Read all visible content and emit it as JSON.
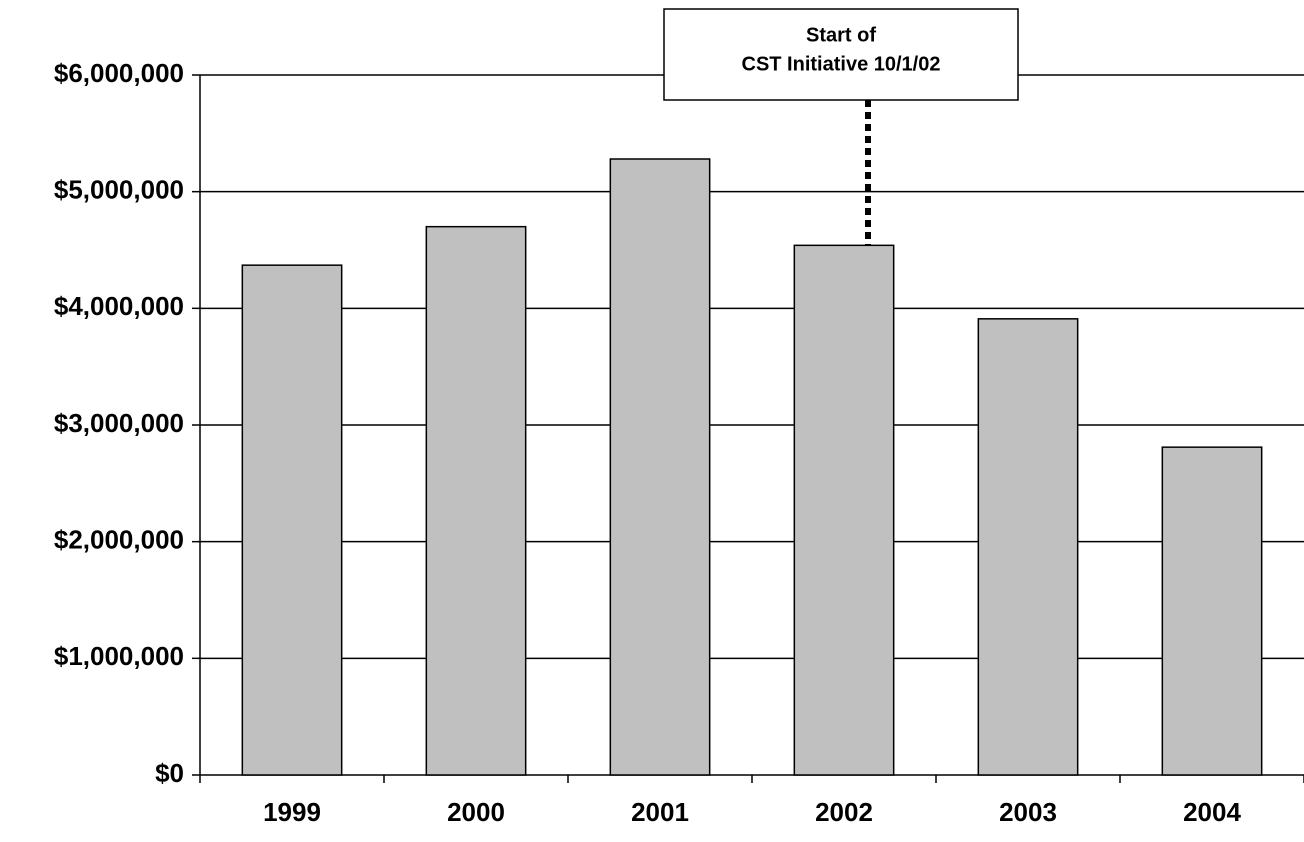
{
  "chart_data": {
    "type": "bar",
    "categories": [
      "1999",
      "2000",
      "2001",
      "2002",
      "2003",
      "2004"
    ],
    "values": [
      4370000,
      4700000,
      5280000,
      4540000,
      3910000,
      2810000
    ],
    "color": "#c0c0c0",
    "ylim": [
      0,
      6000000
    ],
    "yticks": [
      {
        "value": 0,
        "label": "$0"
      },
      {
        "value": 1000000,
        "label": "$1,000,000"
      },
      {
        "value": 2000000,
        "label": "$2,000,000"
      },
      {
        "value": 3000000,
        "label": "$3,000,000"
      },
      {
        "value": 4000000,
        "label": "$4,000,000"
      },
      {
        "value": 5000000,
        "label": "$5,000,000"
      },
      {
        "value": 6000000,
        "label": "$6,000,000"
      }
    ],
    "grid": true,
    "annotation": [
      "Start of",
      "CST Initiative 10/1/02"
    ]
  }
}
